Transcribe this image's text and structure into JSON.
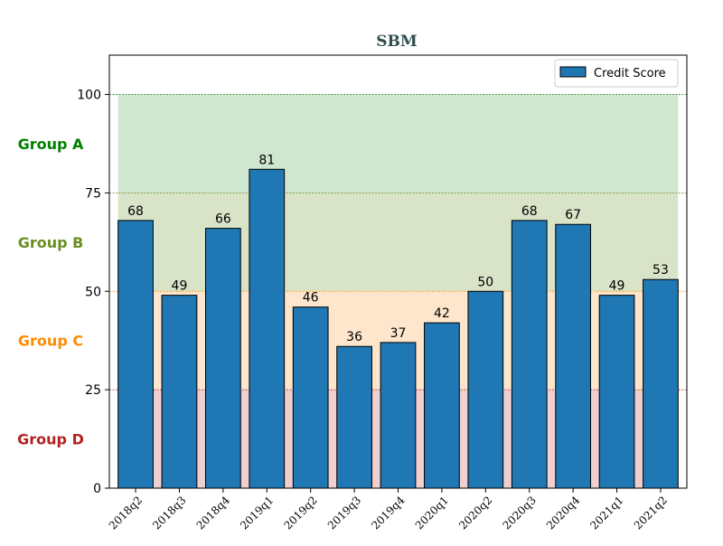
{
  "chart_data": {
    "type": "bar",
    "title": "SBM",
    "title_color": "#2f4f4f",
    "xlabel": "",
    "ylabel": "",
    "categories": [
      "2018q2",
      "2018q3",
      "2018q4",
      "2019q1",
      "2019q2",
      "2019q3",
      "2019q4",
      "2020q1",
      "2020q2",
      "2020q3",
      "2020q4",
      "2021q1",
      "2021q2"
    ],
    "series": [
      {
        "name": "Credit Score",
        "color": "#1f77b4",
        "values": [
          68,
          49,
          66,
          81,
          46,
          36,
          37,
          42,
          50,
          68,
          67,
          49,
          53
        ]
      }
    ],
    "ylim": [
      0,
      110
    ],
    "yticks": [
      0,
      25,
      50,
      75,
      100
    ],
    "grid": false,
    "legend_position": "top-right",
    "bands": [
      {
        "label": "Group A",
        "from": 75,
        "to": 100,
        "fill": "#cfe6cf",
        "label_color": "#008000",
        "line_color": "#2e8b2e"
      },
      {
        "label": "Group B",
        "from": 50,
        "to": 75,
        "fill": "#d9e3c7",
        "label_color": "#6b8e23",
        "line_color": "#6b8e23"
      },
      {
        "label": "Group C",
        "from": 25,
        "to": 50,
        "fill": "#fde6cc",
        "label_color": "#ff8c00",
        "line_color": "#ff8c00"
      },
      {
        "label": "Group D",
        "from": 0,
        "to": 25,
        "fill": "#efcfcf",
        "label_color": "#b22222",
        "line_color": "#b22222"
      }
    ]
  }
}
